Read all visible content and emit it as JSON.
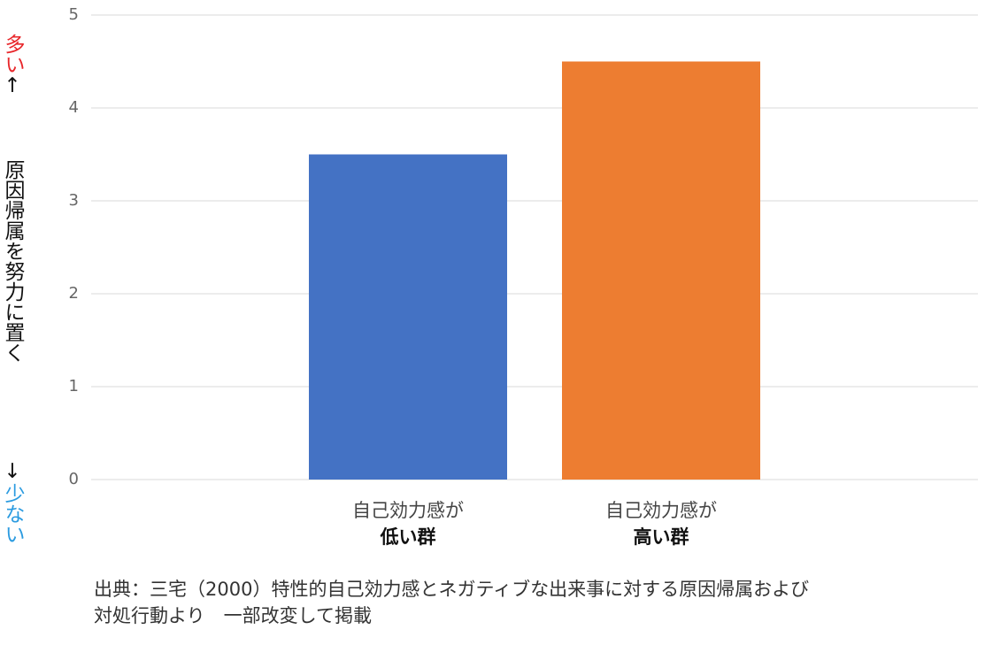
{
  "chart_data": {
    "type": "bar",
    "categories": [
      [
        "自己効力感が",
        "低い群"
      ],
      [
        "自己効力感が",
        "高い群"
      ]
    ],
    "values": [
      3.5,
      4.5
    ],
    "colors": [
      "#4472c4",
      "#ed7d31"
    ],
    "ylim": [
      0,
      5
    ],
    "yticks": [
      0,
      1,
      2,
      3,
      4,
      5
    ],
    "grid": true,
    "y_axis": {
      "top": "多い",
      "top_arrow": "↑",
      "label": "原因帰属を努力に置く",
      "bottom_arrow": "↓",
      "bottom": "少ない"
    },
    "source": [
      "出典：三宅（2000）特性的自己効力感とネガティブな出来事に対する原因帰属および",
      "対処行動より　一部改変して掲載"
    ]
  }
}
